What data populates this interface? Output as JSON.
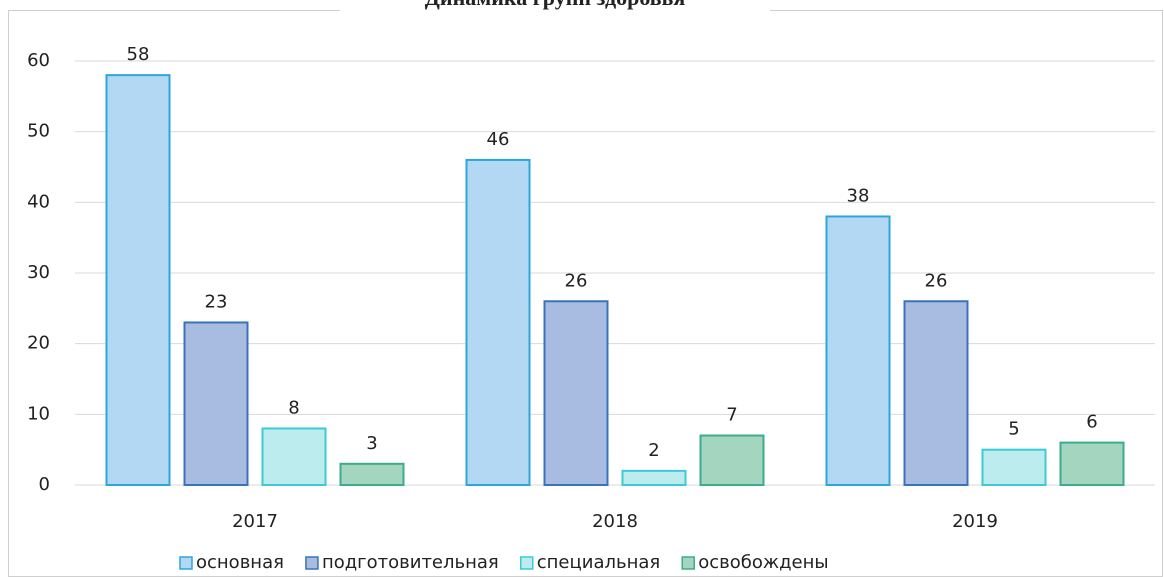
{
  "chart_data": {
    "type": "bar",
    "title": "Динамика групп здоровья",
    "categories": [
      "2017",
      "2018",
      "2019"
    ],
    "series": [
      {
        "name": "основная",
        "color": "#b3d8f3",
        "edge": "#2ea6d9",
        "values": [
          58,
          46,
          38
        ]
      },
      {
        "name": "подготовительная",
        "color": "#a8bbe0",
        "edge": "#3a74b8",
        "values": [
          23,
          26,
          26
        ]
      },
      {
        "name": "специальная",
        "color": "#bcecee",
        "edge": "#3ccbd6",
        "values": [
          8,
          2,
          5
        ]
      },
      {
        "name": "освобождены",
        "color": "#a4d5be",
        "edge": "#3aae8a",
        "values": [
          3,
          7,
          6
        ]
      }
    ],
    "ylim": [
      0,
      60
    ],
    "yticks": [
      0,
      10,
      20,
      30,
      40,
      50,
      60
    ],
    "grid": true,
    "legend": "bottom"
  }
}
